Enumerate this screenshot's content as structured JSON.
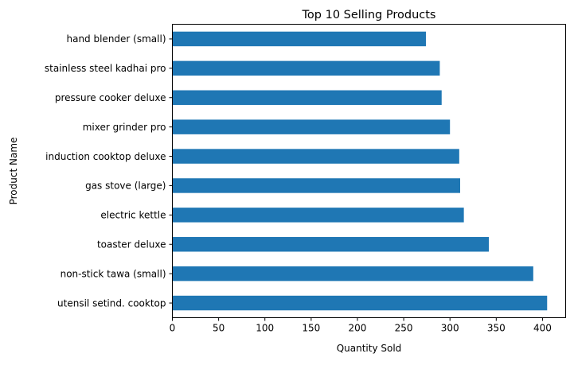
{
  "colors": {
    "bar": "#1f77b4",
    "axis": "#000000",
    "background": "#ffffff"
  },
  "chart_data": {
    "type": "bar",
    "orientation": "horizontal",
    "title": "Top 10 Selling Products",
    "xlabel": "Quantity Sold",
    "ylabel": "Product Name",
    "xlim": [
      0,
      425
    ],
    "xticks": [
      0,
      50,
      100,
      150,
      200,
      250,
      300,
      350,
      400
    ],
    "grid": false,
    "legend": "none",
    "categories": [
      "utensil setind. cooktop",
      "non-stick tawa (small)",
      "toaster deluxe",
      "electric kettle",
      "gas stove (large)",
      "induction cooktop deluxe",
      "mixer grinder pro",
      "pressure cooker deluxe",
      "stainless steel kadhai pro",
      "hand blender (small)"
    ],
    "values": [
      405,
      390,
      342,
      315,
      311,
      310,
      300,
      291,
      289,
      274
    ]
  }
}
